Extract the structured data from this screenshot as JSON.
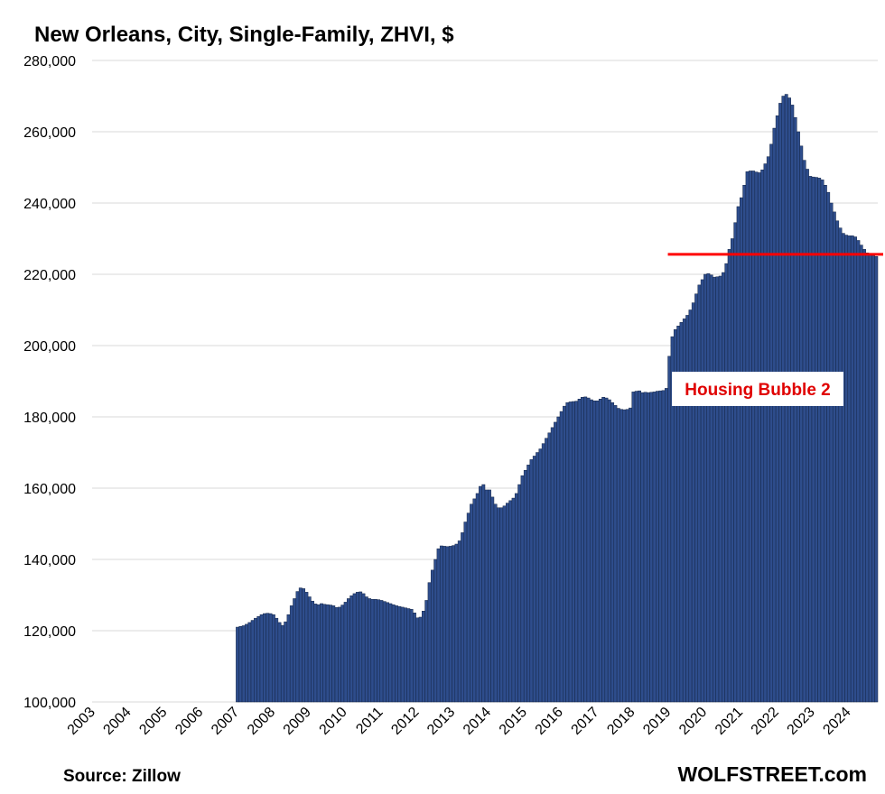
{
  "chart_data": {
    "type": "bar",
    "title": "New Orleans, City, Single-Family, ZHVI, $",
    "source": "Source: Zillow",
    "brand": "WOLFSTREET.com",
    "annotation": "Housing Bubble 2",
    "color": "#2e4d8c",
    "grid": true,
    "ylim": [
      100000,
      280000
    ],
    "yticks": [
      {
        "value": 100000,
        "label": "100,000"
      },
      {
        "value": 120000,
        "label": "120,000"
      },
      {
        "value": 140000,
        "label": "140,000"
      },
      {
        "value": 160000,
        "label": "160,000"
      },
      {
        "value": 180000,
        "label": "180,000"
      },
      {
        "value": 200000,
        "label": "200,000"
      },
      {
        "value": 220000,
        "label": "220,000"
      },
      {
        "value": 240000,
        "label": "240,000"
      },
      {
        "value": 260000,
        "label": "260,000"
      },
      {
        "value": 280000,
        "label": "280,000"
      }
    ],
    "reference_line": {
      "value": 225600,
      "color": "#ff0000",
      "start": "2019"
    },
    "categories": [
      "2003",
      null,
      null,
      null,
      null,
      null,
      null,
      null,
      null,
      null,
      null,
      null,
      "2004",
      null,
      null,
      null,
      null,
      null,
      null,
      null,
      null,
      null,
      null,
      null,
      "2005",
      null,
      null,
      null,
      null,
      null,
      null,
      null,
      null,
      null,
      null,
      null,
      "2006",
      null,
      null,
      null,
      null,
      null,
      null,
      null,
      null,
      null,
      null,
      null,
      "2007",
      null,
      null,
      null,
      null,
      null,
      null,
      null,
      null,
      null,
      null,
      null,
      "2008",
      null,
      null,
      null,
      null,
      null,
      null,
      null,
      null,
      null,
      null,
      null,
      "2009",
      null,
      null,
      null,
      null,
      null,
      null,
      null,
      null,
      null,
      null,
      null,
      "2010",
      null,
      null,
      null,
      null,
      null,
      null,
      null,
      null,
      null,
      null,
      null,
      "2011",
      null,
      null,
      null,
      null,
      null,
      null,
      null,
      null,
      null,
      null,
      null,
      "2012",
      null,
      null,
      null,
      null,
      null,
      null,
      null,
      null,
      null,
      null,
      null,
      "2013",
      null,
      null,
      null,
      null,
      null,
      null,
      null,
      null,
      null,
      null,
      null,
      "2014",
      null,
      null,
      null,
      null,
      null,
      null,
      null,
      null,
      null,
      null,
      null,
      "2015",
      null,
      null,
      null,
      null,
      null,
      null,
      null,
      null,
      null,
      null,
      null,
      "2016",
      null,
      null,
      null,
      null,
      null,
      null,
      null,
      null,
      null,
      null,
      null,
      "2017",
      null,
      null,
      null,
      null,
      null,
      null,
      null,
      null,
      null,
      null,
      null,
      "2018",
      null,
      null,
      null,
      null,
      null,
      null,
      null,
      null,
      null,
      null,
      null,
      "2019",
      null,
      null,
      null,
      null,
      null,
      null,
      null,
      null,
      null,
      null,
      null,
      "2020",
      null,
      null,
      null,
      null,
      null,
      null,
      null,
      null,
      null,
      null,
      null,
      "2021",
      null,
      null,
      null,
      null,
      null,
      null,
      null,
      null,
      null,
      null,
      null,
      "2022",
      null,
      null,
      null,
      null,
      null,
      null,
      null,
      null,
      null,
      null,
      null,
      "2023",
      null,
      null,
      null,
      null,
      null,
      null,
      null,
      null,
      null,
      null,
      null,
      "2024",
      null,
      null,
      null,
      null,
      null,
      null,
      null,
      null,
      null
    ],
    "values": [
      null,
      null,
      null,
      null,
      null,
      null,
      null,
      null,
      null,
      null,
      null,
      null,
      null,
      null,
      null,
      null,
      null,
      null,
      null,
      null,
      null,
      null,
      null,
      null,
      null,
      null,
      null,
      null,
      null,
      null,
      null,
      null,
      null,
      null,
      null,
      null,
      null,
      null,
      null,
      null,
      null,
      null,
      null,
      null,
      null,
      null,
      null,
      null,
      121000,
      121200,
      121400,
      121800,
      122300,
      122900,
      123500,
      124000,
      124500,
      124800,
      124900,
      124800,
      124500,
      123500,
      122300,
      121500,
      122500,
      124500,
      127000,
      129000,
      131000,
      132000,
      131800,
      130800,
      129500,
      128300,
      127500,
      127300,
      127600,
      127400,
      127300,
      127200,
      127000,
      126500,
      126600,
      127200,
      128000,
      129000,
      129800,
      130400,
      130800,
      130900,
      130400,
      129500,
      129000,
      128800,
      128800,
      128700,
      128500,
      128200,
      127900,
      127600,
      127300,
      127000,
      126800,
      126600,
      126400,
      126200,
      126000,
      125000,
      123600,
      123800,
      125500,
      128500,
      133500,
      137000,
      140000,
      143000,
      143800,
      143700,
      143600,
      143700,
      143900,
      144300,
      145200,
      147500,
      150500,
      153000,
      155500,
      157000,
      158500,
      160500,
      161000,
      159500,
      159500,
      157500,
      155500,
      154500,
      154500,
      155000,
      155800,
      156500,
      157200,
      158500,
      161000,
      163500,
      165000,
      166500,
      168000,
      169000,
      170000,
      171000,
      172500,
      174000,
      175500,
      177000,
      178500,
      180000,
      181500,
      183000,
      184000,
      184200,
      184300,
      184400,
      185000,
      185500,
      185600,
      185300,
      184800,
      184500,
      184500,
      185000,
      185500,
      185300,
      184800,
      184000,
      183200,
      182400,
      182100,
      182000,
      182100,
      182500,
      187000,
      187200,
      187300,
      186800,
      186900,
      186800,
      186900,
      187000,
      187200,
      187300,
      187400,
      188000,
      197000,
      202500,
      204500,
      205500,
      206500,
      207500,
      208500,
      210000,
      212000,
      214500,
      217000,
      218500,
      220000,
      220200,
      219800,
      219200,
      219300,
      219500,
      220500,
      223000,
      227000,
      230000,
      234500,
      239000,
      241500,
      245000,
      248800,
      249000,
      249000,
      248700,
      248500,
      249300,
      251000,
      253000,
      256500,
      261000,
      264500,
      268000,
      270000,
      270500,
      269500,
      267500,
      264000,
      260000,
      256000,
      252000,
      249500,
      247500,
      247300,
      247200,
      247000,
      246500,
      245000,
      243000,
      240000,
      237500,
      235000,
      233000,
      231500,
      231000,
      230800,
      230800,
      230500,
      229500,
      228200,
      227000,
      226000,
      225500,
      225300,
      225000
    ]
  }
}
